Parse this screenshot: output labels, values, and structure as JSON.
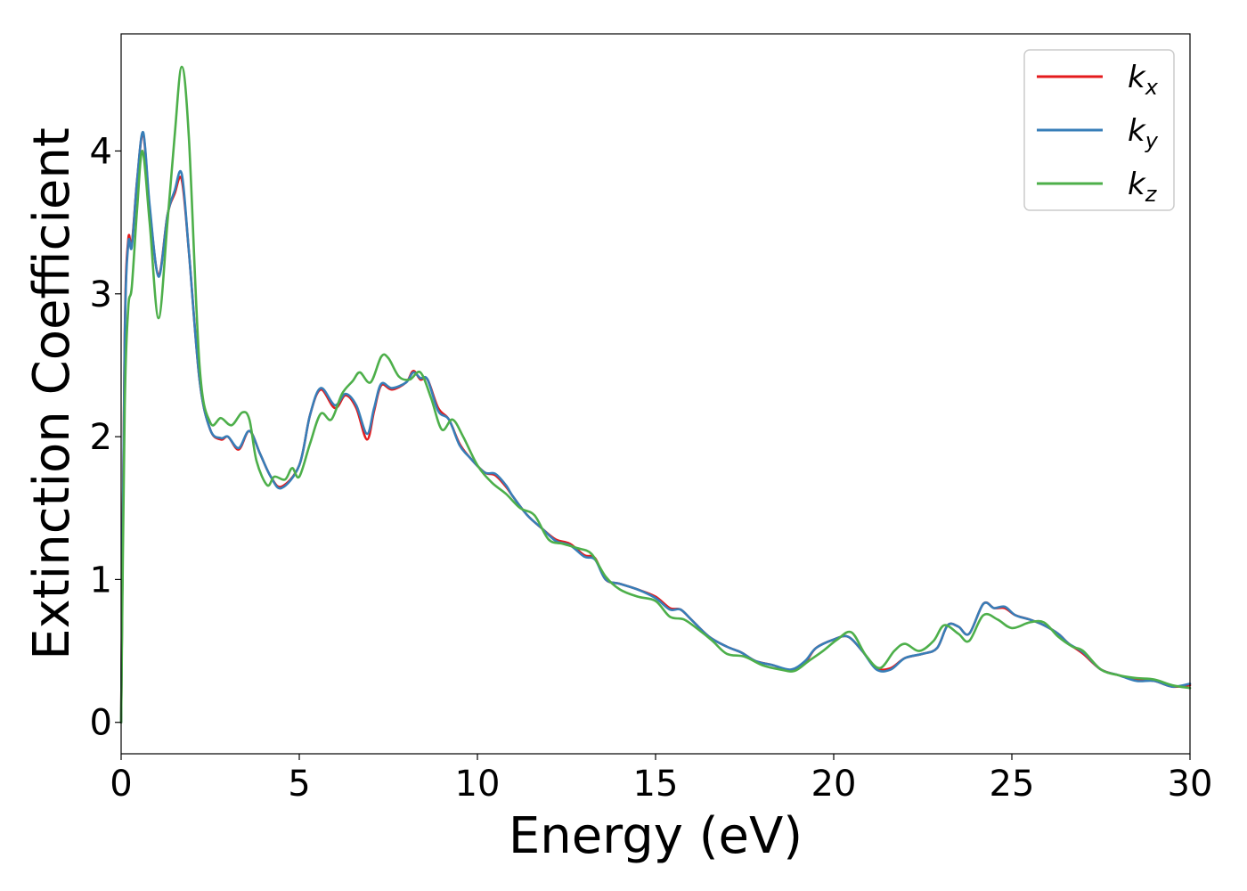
{
  "chart_data": {
    "type": "line",
    "title": "",
    "xlabel": "Energy (eV)",
    "ylabel": "Extinction Coefficient",
    "xlim": [
      0,
      30
    ],
    "ylim": [
      -0.22,
      4.82
    ],
    "xticks": [
      0,
      5,
      10,
      15,
      20,
      25,
      30
    ],
    "xtick_labels": [
      "0",
      "5",
      "10",
      "15",
      "20",
      "25",
      "30"
    ],
    "yticks": [
      0,
      1,
      2,
      3,
      4
    ],
    "ytick_labels": [
      "0",
      "1",
      "2",
      "3",
      "4"
    ],
    "grid": false,
    "legend_position": "top-right",
    "series": [
      {
        "name": "k",
        "subscript": "x",
        "color": "#e41a1c",
        "points": [
          [
            0,
            0.0
          ],
          [
            0.1,
            2.7
          ],
          [
            0.2,
            3.38
          ],
          [
            0.3,
            3.35
          ],
          [
            0.45,
            3.8
          ],
          [
            0.62,
            4.12
          ],
          [
            0.8,
            3.6
          ],
          [
            1.05,
            3.13
          ],
          [
            1.3,
            3.55
          ],
          [
            1.5,
            3.7
          ],
          [
            1.7,
            3.8
          ],
          [
            1.9,
            3.3
          ],
          [
            2.2,
            2.4
          ],
          [
            2.5,
            2.05
          ],
          [
            2.8,
            1.98
          ],
          [
            3.0,
            2.0
          ],
          [
            3.3,
            1.91
          ],
          [
            3.6,
            2.04
          ],
          [
            3.9,
            1.88
          ],
          [
            4.2,
            1.72
          ],
          [
            4.5,
            1.65
          ],
          [
            5.0,
            1.8
          ],
          [
            5.3,
            2.15
          ],
          [
            5.6,
            2.33
          ],
          [
            6.0,
            2.2
          ],
          [
            6.3,
            2.29
          ],
          [
            6.6,
            2.2
          ],
          [
            6.9,
            1.98
          ],
          [
            7.1,
            2.18
          ],
          [
            7.3,
            2.36
          ],
          [
            7.6,
            2.33
          ],
          [
            8.0,
            2.38
          ],
          [
            8.2,
            2.46
          ],
          [
            8.4,
            2.4
          ],
          [
            8.6,
            2.4
          ],
          [
            8.9,
            2.2
          ],
          [
            9.2,
            2.12
          ],
          [
            9.5,
            1.95
          ],
          [
            9.8,
            1.85
          ],
          [
            10.2,
            1.75
          ],
          [
            10.5,
            1.73
          ],
          [
            10.8,
            1.65
          ],
          [
            11.0,
            1.58
          ],
          [
            11.4,
            1.45
          ],
          [
            11.8,
            1.36
          ],
          [
            12.2,
            1.28
          ],
          [
            12.6,
            1.25
          ],
          [
            13.0,
            1.17
          ],
          [
            13.3,
            1.15
          ],
          [
            13.6,
            1.0
          ],
          [
            14.0,
            0.97
          ],
          [
            14.5,
            0.93
          ],
          [
            15.0,
            0.88
          ],
          [
            15.4,
            0.8
          ],
          [
            15.7,
            0.79
          ],
          [
            16.0,
            0.72
          ],
          [
            16.5,
            0.6
          ],
          [
            17.0,
            0.53
          ],
          [
            17.4,
            0.49
          ],
          [
            17.8,
            0.43
          ],
          [
            18.3,
            0.4
          ],
          [
            18.8,
            0.36
          ],
          [
            19.2,
            0.42
          ],
          [
            19.5,
            0.52
          ],
          [
            20.0,
            0.58
          ],
          [
            20.4,
            0.6
          ],
          [
            20.8,
            0.5
          ],
          [
            21.2,
            0.38
          ],
          [
            21.6,
            0.38
          ],
          [
            22.0,
            0.45
          ],
          [
            22.5,
            0.48
          ],
          [
            22.9,
            0.52
          ],
          [
            23.2,
            0.68
          ],
          [
            23.5,
            0.67
          ],
          [
            23.8,
            0.62
          ],
          [
            24.2,
            0.83
          ],
          [
            24.5,
            0.8
          ],
          [
            24.8,
            0.8
          ],
          [
            25.1,
            0.75
          ],
          [
            25.5,
            0.72
          ],
          [
            25.9,
            0.68
          ],
          [
            26.3,
            0.62
          ],
          [
            26.6,
            0.55
          ],
          [
            27.0,
            0.48
          ],
          [
            27.5,
            0.37
          ],
          [
            28.0,
            0.33
          ],
          [
            28.5,
            0.3
          ],
          [
            29.0,
            0.29
          ],
          [
            29.5,
            0.25
          ],
          [
            30.0,
            0.26
          ]
        ]
      },
      {
        "name": "k",
        "subscript": "y",
        "color": "#377eb8",
        "points": [
          [
            0,
            0.0
          ],
          [
            0.1,
            2.65
          ],
          [
            0.2,
            3.35
          ],
          [
            0.3,
            3.33
          ],
          [
            0.45,
            3.8
          ],
          [
            0.62,
            4.13
          ],
          [
            0.8,
            3.62
          ],
          [
            1.05,
            3.12
          ],
          [
            1.3,
            3.55
          ],
          [
            1.5,
            3.72
          ],
          [
            1.7,
            3.84
          ],
          [
            1.9,
            3.3
          ],
          [
            2.2,
            2.4
          ],
          [
            2.5,
            2.05
          ],
          [
            2.8,
            1.99
          ],
          [
            3.0,
            2.0
          ],
          [
            3.3,
            1.92
          ],
          [
            3.6,
            2.04
          ],
          [
            3.9,
            1.88
          ],
          [
            4.2,
            1.72
          ],
          [
            4.5,
            1.64
          ],
          [
            5.0,
            1.8
          ],
          [
            5.3,
            2.15
          ],
          [
            5.6,
            2.34
          ],
          [
            6.0,
            2.22
          ],
          [
            6.3,
            2.3
          ],
          [
            6.6,
            2.22
          ],
          [
            6.9,
            2.02
          ],
          [
            7.1,
            2.2
          ],
          [
            7.3,
            2.37
          ],
          [
            7.6,
            2.34
          ],
          [
            8.0,
            2.38
          ],
          [
            8.2,
            2.45
          ],
          [
            8.4,
            2.41
          ],
          [
            8.6,
            2.4
          ],
          [
            8.9,
            2.18
          ],
          [
            9.2,
            2.12
          ],
          [
            9.5,
            1.94
          ],
          [
            9.8,
            1.85
          ],
          [
            10.2,
            1.75
          ],
          [
            10.5,
            1.74
          ],
          [
            10.8,
            1.66
          ],
          [
            11.0,
            1.58
          ],
          [
            11.4,
            1.45
          ],
          [
            11.8,
            1.36
          ],
          [
            12.2,
            1.27
          ],
          [
            12.6,
            1.24
          ],
          [
            13.0,
            1.16
          ],
          [
            13.3,
            1.14
          ],
          [
            13.6,
            1.0
          ],
          [
            14.0,
            0.97
          ],
          [
            14.5,
            0.93
          ],
          [
            15.0,
            0.87
          ],
          [
            15.4,
            0.79
          ],
          [
            15.7,
            0.79
          ],
          [
            16.0,
            0.72
          ],
          [
            16.5,
            0.6
          ],
          [
            17.0,
            0.53
          ],
          [
            17.4,
            0.49
          ],
          [
            17.8,
            0.43
          ],
          [
            18.3,
            0.4
          ],
          [
            18.8,
            0.37
          ],
          [
            19.2,
            0.43
          ],
          [
            19.5,
            0.52
          ],
          [
            20.0,
            0.58
          ],
          [
            20.4,
            0.6
          ],
          [
            20.8,
            0.5
          ],
          [
            21.2,
            0.37
          ],
          [
            21.6,
            0.37
          ],
          [
            22.0,
            0.45
          ],
          [
            22.5,
            0.48
          ],
          [
            22.9,
            0.52
          ],
          [
            23.2,
            0.68
          ],
          [
            23.5,
            0.67
          ],
          [
            23.8,
            0.62
          ],
          [
            24.2,
            0.83
          ],
          [
            24.5,
            0.8
          ],
          [
            24.8,
            0.81
          ],
          [
            25.1,
            0.75
          ],
          [
            25.5,
            0.72
          ],
          [
            25.9,
            0.68
          ],
          [
            26.3,
            0.62
          ],
          [
            26.6,
            0.55
          ],
          [
            27.0,
            0.49
          ],
          [
            27.5,
            0.37
          ],
          [
            28.0,
            0.33
          ],
          [
            28.5,
            0.29
          ],
          [
            29.0,
            0.29
          ],
          [
            29.5,
            0.25
          ],
          [
            30.0,
            0.27
          ]
        ]
      },
      {
        "name": "k",
        "subscript": "z",
        "color": "#4daf4a",
        "points": [
          [
            0,
            0.0
          ],
          [
            0.1,
            2.2
          ],
          [
            0.2,
            2.9
          ],
          [
            0.3,
            3.05
          ],
          [
            0.45,
            3.6
          ],
          [
            0.6,
            4.0
          ],
          [
            0.8,
            3.5
          ],
          [
            1.05,
            2.83
          ],
          [
            1.3,
            3.5
          ],
          [
            1.5,
            4.1
          ],
          [
            1.7,
            4.59
          ],
          [
            1.9,
            4.1
          ],
          [
            2.2,
            2.5
          ],
          [
            2.5,
            2.1
          ],
          [
            2.8,
            2.13
          ],
          [
            3.1,
            2.08
          ],
          [
            3.4,
            2.17
          ],
          [
            3.6,
            2.12
          ],
          [
            3.8,
            1.83
          ],
          [
            4.1,
            1.66
          ],
          [
            4.3,
            1.72
          ],
          [
            4.6,
            1.7
          ],
          [
            4.8,
            1.78
          ],
          [
            5.0,
            1.72
          ],
          [
            5.3,
            1.95
          ],
          [
            5.6,
            2.16
          ],
          [
            5.9,
            2.12
          ],
          [
            6.2,
            2.3
          ],
          [
            6.5,
            2.39
          ],
          [
            6.7,
            2.45
          ],
          [
            7.0,
            2.38
          ],
          [
            7.3,
            2.56
          ],
          [
            7.5,
            2.55
          ],
          [
            7.8,
            2.42
          ],
          [
            8.1,
            2.4
          ],
          [
            8.4,
            2.45
          ],
          [
            8.7,
            2.27
          ],
          [
            9.0,
            2.05
          ],
          [
            9.3,
            2.12
          ],
          [
            9.6,
            2.0
          ],
          [
            10.0,
            1.8
          ],
          [
            10.4,
            1.68
          ],
          [
            10.8,
            1.6
          ],
          [
            11.2,
            1.5
          ],
          [
            11.6,
            1.45
          ],
          [
            12.0,
            1.28
          ],
          [
            12.4,
            1.25
          ],
          [
            12.8,
            1.22
          ],
          [
            13.2,
            1.18
          ],
          [
            13.6,
            1.02
          ],
          [
            14.0,
            0.93
          ],
          [
            14.5,
            0.88
          ],
          [
            15.0,
            0.85
          ],
          [
            15.4,
            0.74
          ],
          [
            15.8,
            0.72
          ],
          [
            16.2,
            0.65
          ],
          [
            16.6,
            0.57
          ],
          [
            17.0,
            0.48
          ],
          [
            17.5,
            0.46
          ],
          [
            18.0,
            0.4
          ],
          [
            18.5,
            0.37
          ],
          [
            18.9,
            0.36
          ],
          [
            19.3,
            0.43
          ],
          [
            19.7,
            0.5
          ],
          [
            20.1,
            0.58
          ],
          [
            20.5,
            0.63
          ],
          [
            20.9,
            0.47
          ],
          [
            21.3,
            0.38
          ],
          [
            21.7,
            0.5
          ],
          [
            22.0,
            0.55
          ],
          [
            22.4,
            0.5
          ],
          [
            22.8,
            0.57
          ],
          [
            23.1,
            0.68
          ],
          [
            23.5,
            0.62
          ],
          [
            23.8,
            0.57
          ],
          [
            24.2,
            0.75
          ],
          [
            24.6,
            0.72
          ],
          [
            25.0,
            0.66
          ],
          [
            25.5,
            0.7
          ],
          [
            25.9,
            0.7
          ],
          [
            26.3,
            0.6
          ],
          [
            26.7,
            0.53
          ],
          [
            27.0,
            0.5
          ],
          [
            27.5,
            0.37
          ],
          [
            28.0,
            0.33
          ],
          [
            28.5,
            0.31
          ],
          [
            29.0,
            0.3
          ],
          [
            29.5,
            0.26
          ],
          [
            30.0,
            0.24
          ]
        ]
      }
    ]
  }
}
